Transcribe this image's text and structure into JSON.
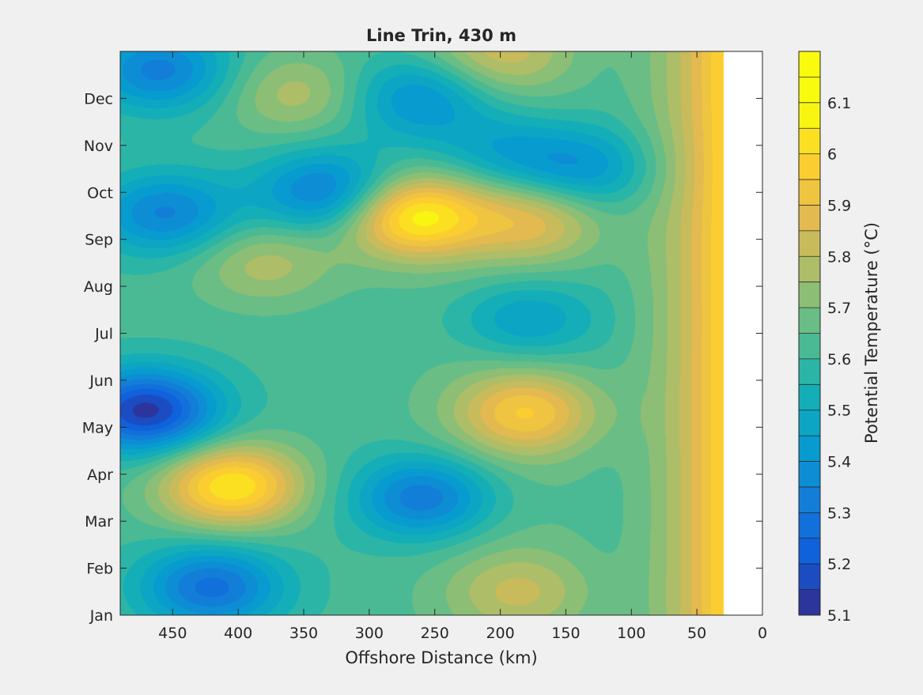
{
  "chart_data": {
    "type": "heatmap",
    "title": "Line Trin, 430 m",
    "xlabel": "Offshore Distance (km)",
    "ylabel": "",
    "xlim": [
      0,
      490
    ],
    "x_reversed": true,
    "x_ticks": [
      450,
      400,
      350,
      300,
      250,
      200,
      150,
      100,
      50,
      0
    ],
    "y_ticks": [
      "Jan",
      "Feb",
      "Mar",
      "Apr",
      "May",
      "Jun",
      "Jul",
      "Aug",
      "Sep",
      "Oct",
      "Nov",
      "Dec"
    ],
    "y_range_months": [
      1,
      13
    ],
    "no_data_within_km": 30,
    "colorbar": {
      "label": "Potential Temperature (°C)",
      "min": 5.1,
      "max": 6.2,
      "step": 0.05,
      "ticks": [
        5.1,
        5.2,
        5.3,
        5.4,
        5.5,
        5.6,
        5.7,
        5.8,
        5.9,
        6,
        6.1
      ],
      "colormap": "parula"
    },
    "background_value": 5.62,
    "features": [
      {
        "x": 470,
        "month": 5.35,
        "value": 5.13
      },
      {
        "x": 420,
        "month": 1.6,
        "value": 5.28
      },
      {
        "x": 455,
        "month": 9.55,
        "value": 5.34
      },
      {
        "x": 330,
        "month": 10.0,
        "value": 5.3
      },
      {
        "x": 262,
        "month": 12.0,
        "value": 5.38
      },
      {
        "x": 258,
        "month": 3.5,
        "value": 5.3
      },
      {
        "x": 180,
        "month": 7.3,
        "value": 5.42
      },
      {
        "x": 140,
        "month": 10.5,
        "value": 5.4
      },
      {
        "x": 200,
        "month": 10.9,
        "value": 5.45
      },
      {
        "x": 460,
        "month": 12.6,
        "value": 5.33
      },
      {
        "x": 405,
        "month": 3.75,
        "value": 6.05
      },
      {
        "x": 268,
        "month": 9.5,
        "value": 6.08
      },
      {
        "x": 180,
        "month": 5.3,
        "value": 5.92
      },
      {
        "x": 175,
        "month": 9.4,
        "value": 5.85
      },
      {
        "x": 185,
        "month": 1.5,
        "value": 5.78
      },
      {
        "x": 355,
        "month": 12.1,
        "value": 5.78
      },
      {
        "x": 380,
        "month": 8.5,
        "value": 5.78
      },
      {
        "x": 200,
        "month": 13.0,
        "value": 5.8
      }
    ]
  }
}
